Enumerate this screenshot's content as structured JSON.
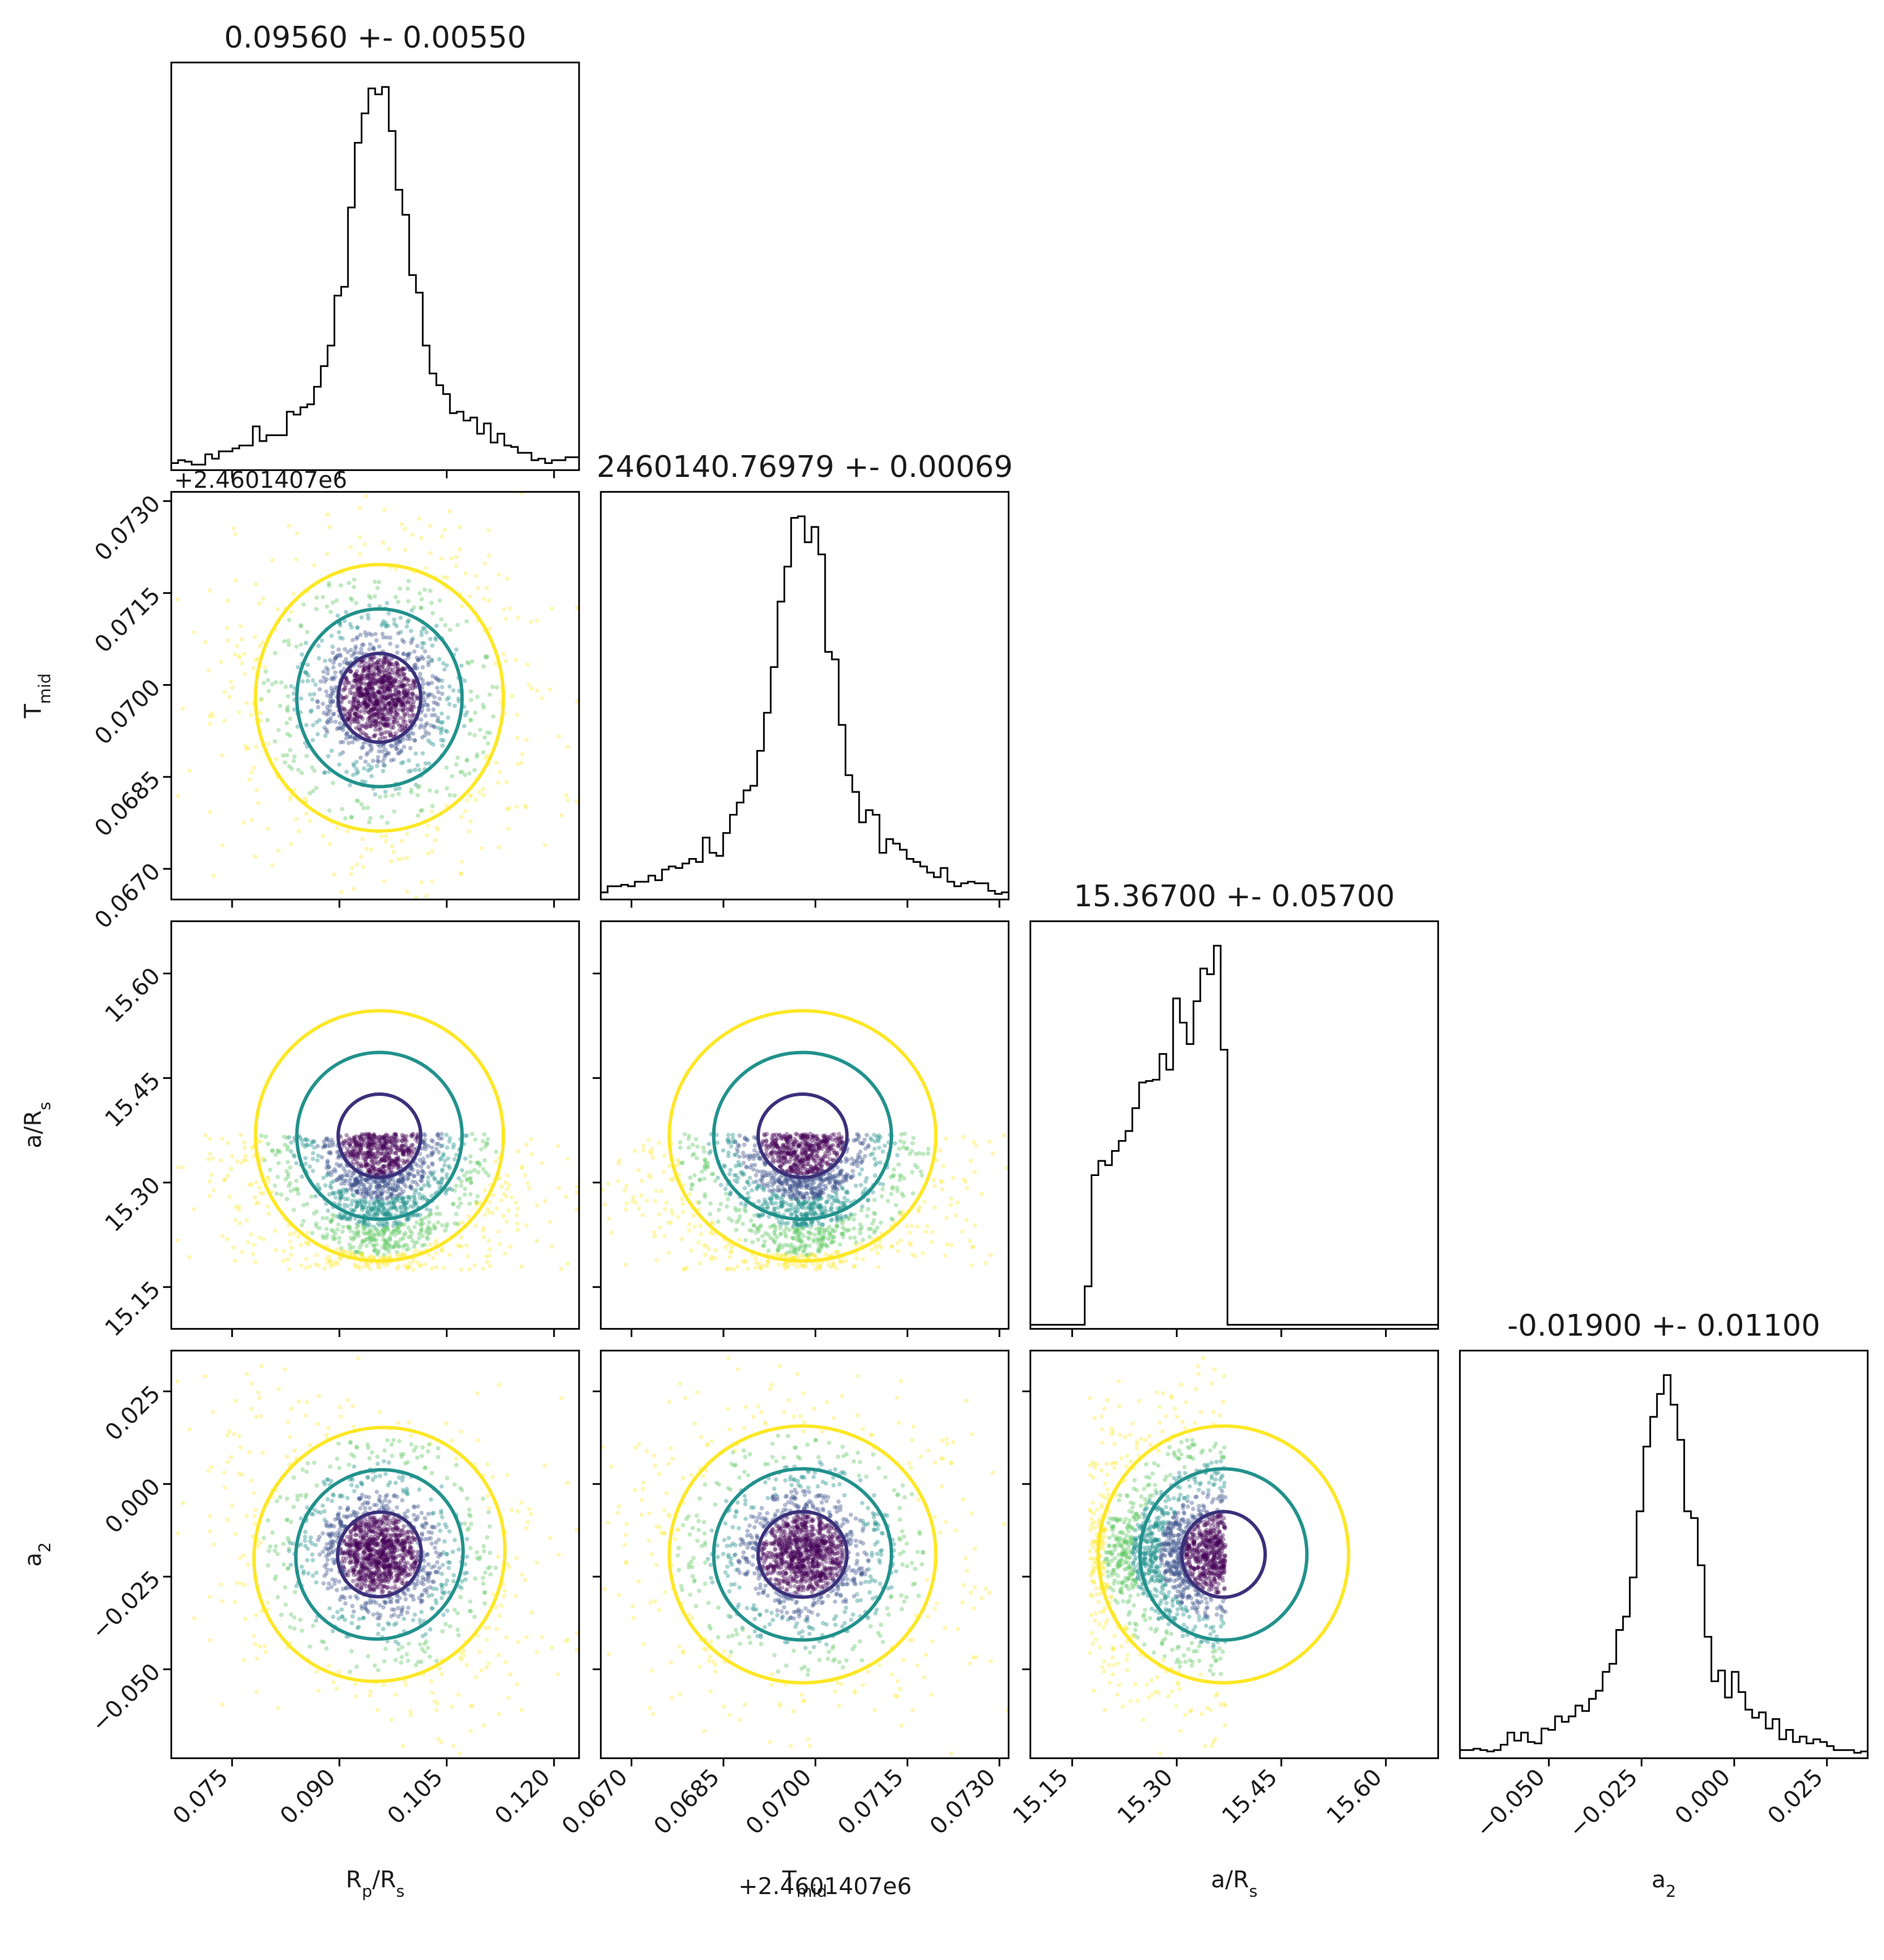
{
  "chart_data": {
    "type": "corner",
    "params": [
      {
        "key": "rp",
        "axis_label": "R_p/R_s",
        "title": "0.09560 +- 0.00550",
        "median": 0.0956,
        "sigma": 0.0055,
        "range": [
          0.0665,
          0.1235
        ],
        "ticks": [
          "0.075",
          "0.090",
          "0.105",
          "0.120"
        ],
        "tick_values": [
          0.075,
          0.09,
          0.105,
          0.12
        ],
        "offset": ""
      },
      {
        "key": "tmid",
        "axis_label": "T_mid",
        "title": "2460140.76979 +- 0.00069",
        "median": 0.06979,
        "sigma": 0.00069,
        "range": [
          0.0665,
          0.07315
        ],
        "ticks": [
          "0.0670",
          "0.0685",
          "0.0700",
          "0.0715",
          "0.0730"
        ],
        "tick_values": [
          0.067,
          0.0685,
          0.07,
          0.0715,
          0.073
        ],
        "offset": "+2.4601407e6"
      },
      {
        "key": "ars",
        "axis_label": "a/R_s",
        "title": "15.36700 +- 0.05700",
        "median": 15.367,
        "sigma": 0.057,
        "range": [
          15.09,
          15.675
        ],
        "ticks": [
          "15.15",
          "15.30",
          "15.45",
          "15.60"
        ],
        "tick_values": [
          15.15,
          15.3,
          15.45,
          15.6
        ],
        "offset": ""
      },
      {
        "key": "a2",
        "axis_label": "a_2",
        "title": "-0.01900 +- 0.01100",
        "median": -0.019,
        "sigma": 0.011,
        "range": [
          -0.074,
          0.036
        ],
        "ticks": [
          "−0.050",
          "−0.025",
          "0.000",
          "0.025"
        ],
        "tick_values": [
          -0.05,
          -0.025,
          0.0,
          0.025
        ],
        "offset": ""
      }
    ],
    "offset_label": "+2.4601407e6",
    "contour_levels": [
      "1 sigma",
      "2 sigma",
      "3 sigma"
    ],
    "contour_colors": [
      "#3b2f7a",
      "#21918c",
      "#fde725"
    ],
    "scatter_colormap": "viridis",
    "hist_style": "step",
    "grid": false,
    "legend": "none"
  }
}
